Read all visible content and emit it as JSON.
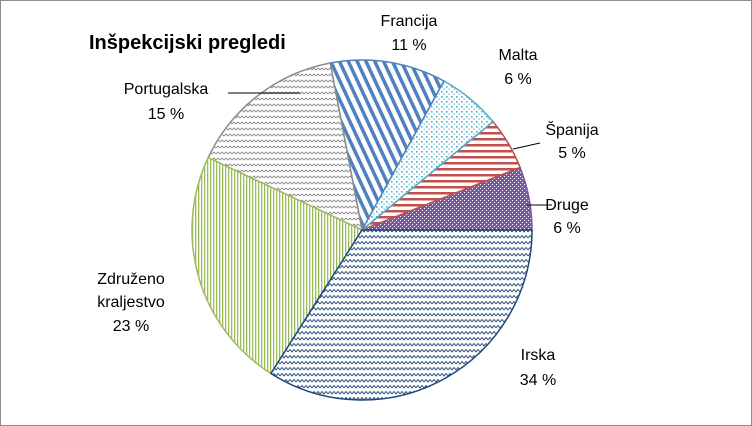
{
  "chart_data": {
    "type": "pie",
    "title": "Inšpekcijski pregledi",
    "slices": [
      {
        "key": "druge",
        "name": "Druge",
        "value": 6,
        "label_lines": [
          "Druge",
          "6 %"
        ],
        "color": "#7b58a6",
        "pattern": "dots-dense"
      },
      {
        "key": "spanija",
        "name": "Španija",
        "value": 5,
        "label_lines": [
          "Španija",
          "5 %"
        ],
        "color": "#c0504d",
        "pattern": "horizontal-lines"
      },
      {
        "key": "malta",
        "name": "Malta",
        "value": 6,
        "label_lines": [
          "Malta",
          "6 %"
        ],
        "color": "#4bacc6",
        "pattern": "dots"
      },
      {
        "key": "francija",
        "name": "Francija",
        "value": 11,
        "label_lines": [
          "Francija",
          "11 %"
        ],
        "color": "#4f81bd",
        "pattern": "diagonal-lines"
      },
      {
        "key": "portugalska",
        "name": "Portugalska",
        "value": 15,
        "label_lines": [
          "Portugalska",
          "15 %"
        ],
        "color": "#8c8c8c",
        "pattern": "zigzag-small"
      },
      {
        "key": "zdruzeno",
        "name": "Združeno kraljestvo",
        "value": 23,
        "label_lines": [
          "Združeno",
          "kraljestvo",
          "23 %"
        ],
        "color": "#9bbb59",
        "pattern": "vertical-lines"
      },
      {
        "key": "irska",
        "name": "Irska",
        "value": 34,
        "label_lines": [
          "Irska",
          "34 %"
        ],
        "color": "#1f497d",
        "pattern": "zigzag"
      }
    ],
    "start": "3 o'clock",
    "direction": "counter-clockwise",
    "legend": "none"
  }
}
